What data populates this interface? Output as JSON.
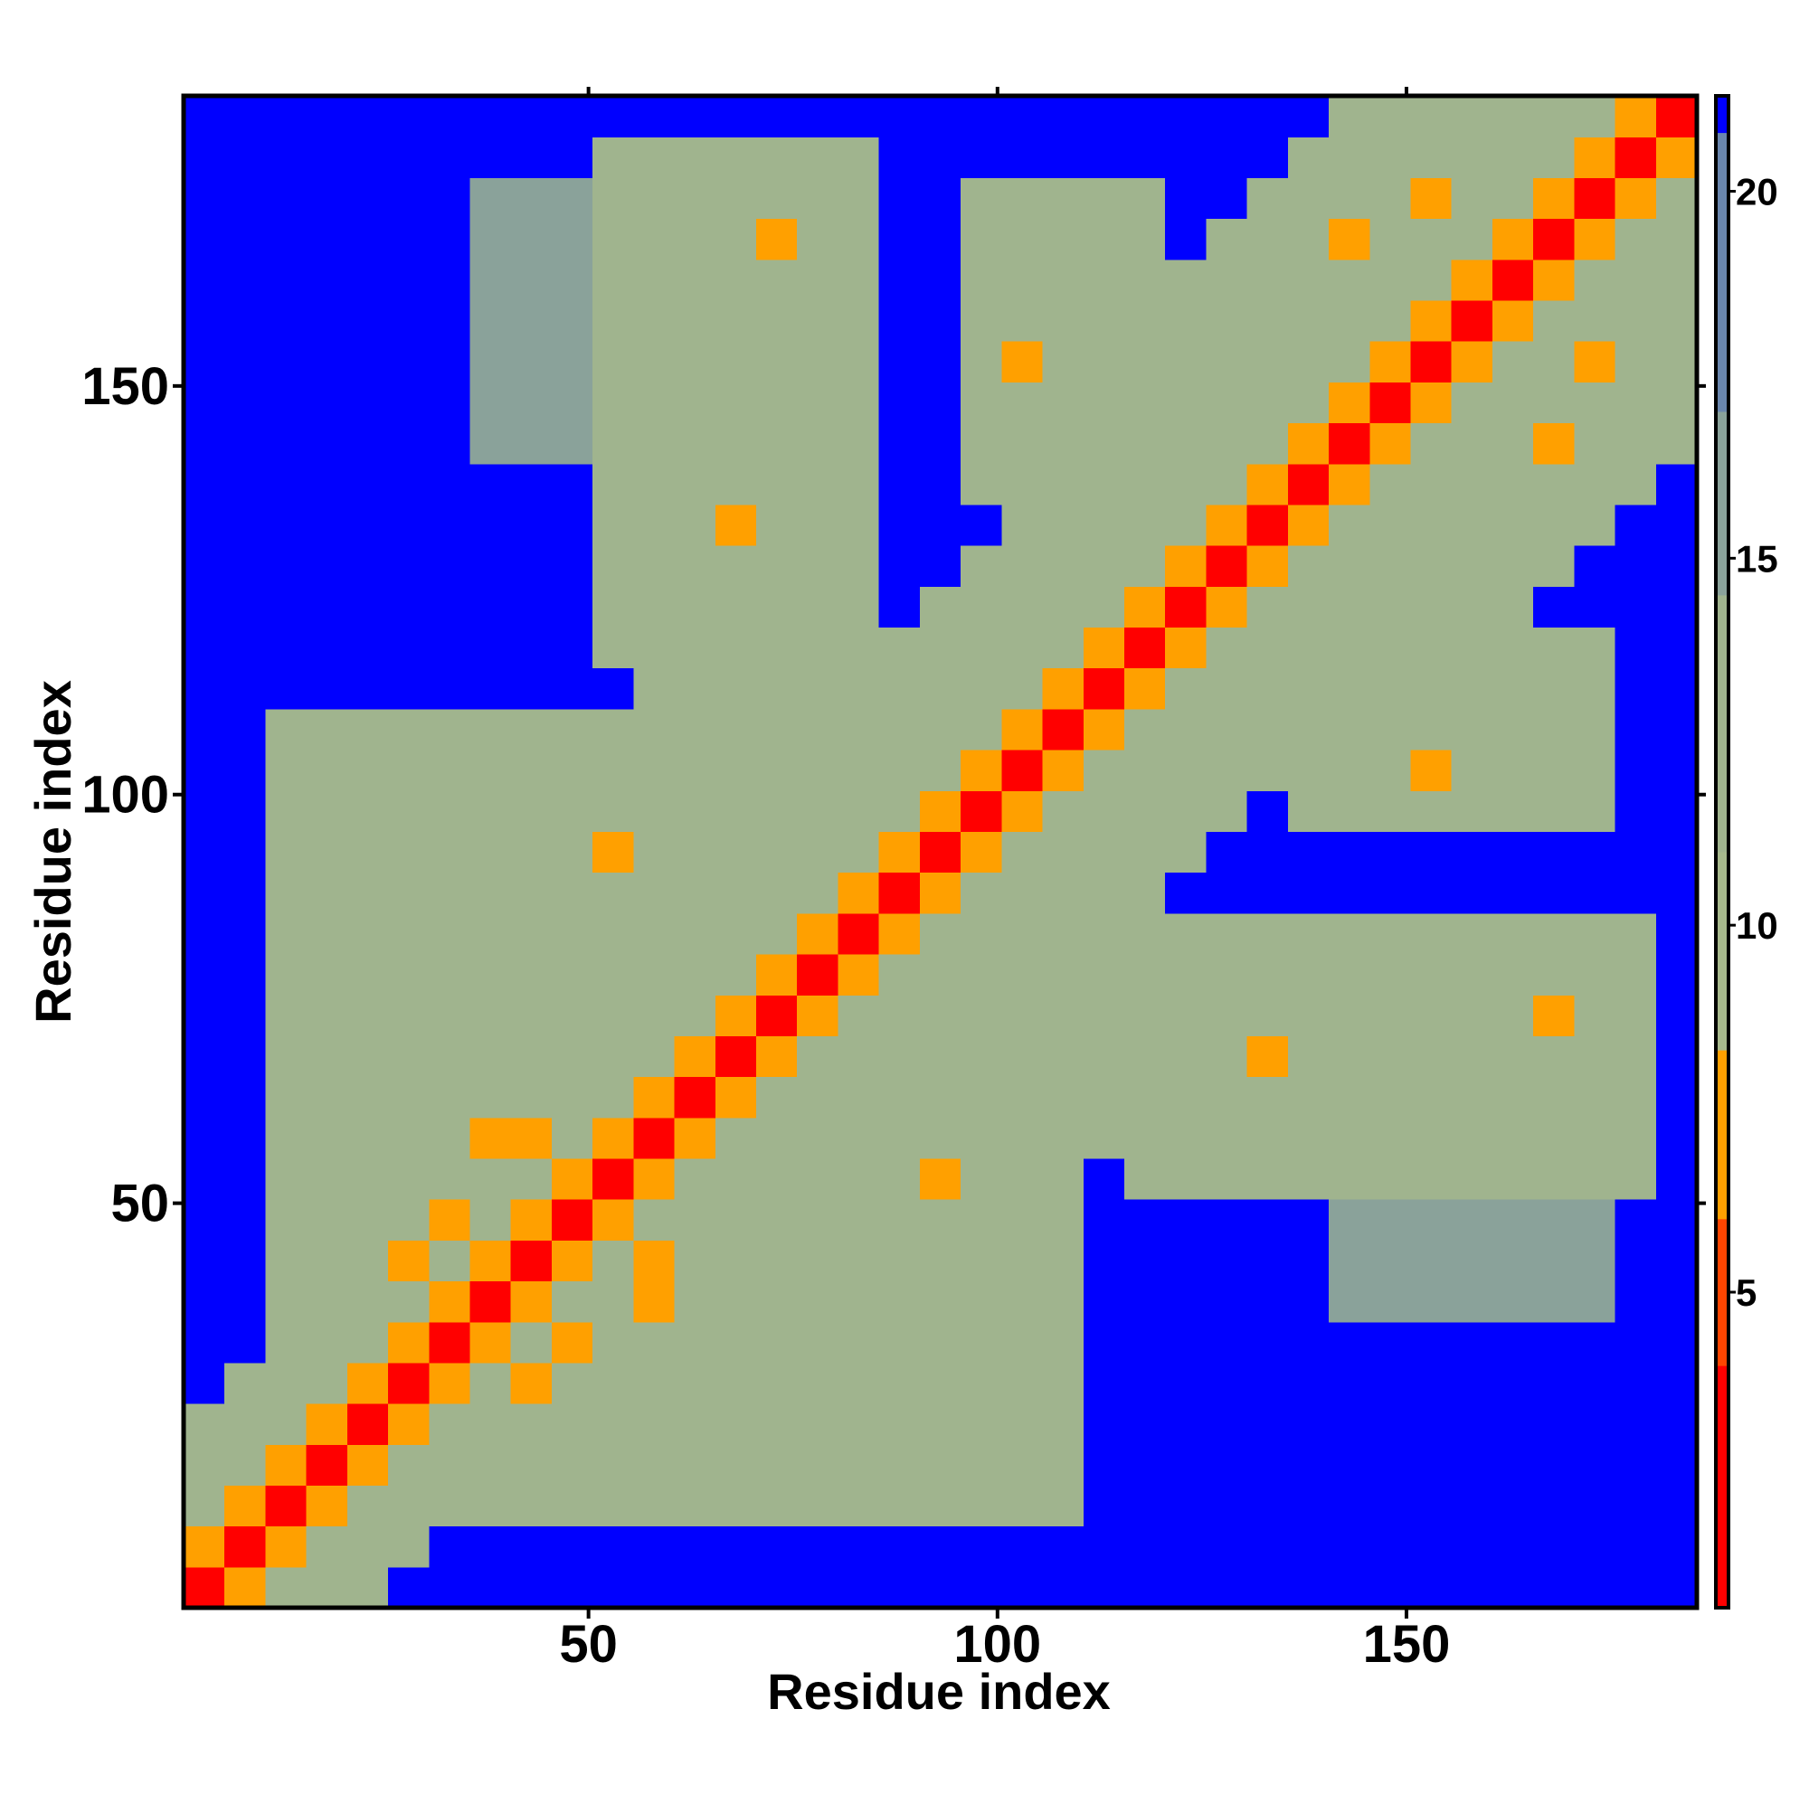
{
  "chart_data": {
    "type": "heatmap",
    "x_label": "Residue index",
    "y_label": "Residue index",
    "xlim": [
      0.5,
      185.5
    ],
    "ylim": [
      0.5,
      185.5
    ],
    "xticks": [
      50,
      100,
      150
    ],
    "yticks": [
      50,
      100,
      150
    ],
    "bins": [
      0.5,
      5.5,
      10.5,
      15.5,
      20.5,
      25.5,
      30.5,
      35.5,
      40.5,
      45.5,
      50.5,
      55.5,
      60.5,
      65.5,
      70.5,
      75.5,
      80.5,
      85.5,
      90.5,
      95.5,
      100.5,
      105.5,
      110.5,
      115.5,
      120.5,
      125.5,
      130.5,
      135.5,
      140.5,
      145.5,
      150.5,
      155.5,
      160.5,
      165.5,
      170.5,
      175.5,
      180.5,
      185.5
    ],
    "color_breaks": [
      0.7,
      4,
      6,
      8.3,
      11,
      14.5,
      17,
      20.8,
      21.3
    ],
    "colors": [
      "#ff0000",
      "#ff4500",
      "#ffa000",
      "#a7b98c",
      "#a0b48e",
      "#8aa29a",
      "#6a86ad",
      "#0000ff"
    ],
    "cbar_ticks": [
      5,
      10,
      15,
      20
    ],
    "z": [
      [
        2,
        7,
        12,
        14,
        14,
        21,
        21,
        21,
        21,
        21,
        21,
        21,
        21,
        21,
        21,
        21,
        21,
        21,
        21,
        21,
        21,
        21,
        21,
        21,
        21,
        21,
        21,
        21,
        21,
        21,
        21,
        21,
        21,
        21,
        21,
        21,
        21
      ],
      [
        7,
        2,
        7,
        12,
        14,
        14,
        21,
        21,
        21,
        21,
        21,
        21,
        21,
        21,
        21,
        21,
        21,
        21,
        21,
        21,
        21,
        21,
        21,
        21,
        21,
        21,
        21,
        21,
        21,
        21,
        21,
        21,
        21,
        21,
        21,
        21,
        21
      ],
      [
        12,
        7,
        2,
        7,
        12,
        14,
        14,
        13,
        13,
        13,
        13,
        13,
        13,
        14,
        14,
        14,
        14,
        14,
        14,
        14,
        14,
        14,
        21,
        21,
        21,
        21,
        21,
        21,
        21,
        21,
        21,
        21,
        21,
        21,
        21,
        21,
        21
      ],
      [
        14,
        12,
        7,
        2,
        7,
        12,
        14,
        14,
        13,
        13,
        13,
        13,
        13,
        14,
        14,
        14,
        14,
        14,
        14,
        14,
        14,
        14,
        21,
        21,
        21,
        21,
        21,
        21,
        21,
        21,
        21,
        21,
        21,
        21,
        21,
        21,
        21
      ],
      [
        14,
        14,
        12,
        7,
        2,
        7,
        12,
        14,
        14,
        13,
        13,
        13,
        13,
        14,
        14,
        14,
        14,
        14,
        14,
        14,
        14,
        14,
        21,
        21,
        21,
        21,
        21,
        21,
        21,
        21,
        21,
        21,
        21,
        21,
        21,
        21,
        21
      ],
      [
        21,
        14,
        14,
        12,
        7,
        2,
        7,
        12,
        7,
        14,
        13,
        13,
        13,
        14,
        14,
        14,
        14,
        14,
        14,
        14,
        14,
        14,
        21,
        21,
        21,
        21,
        21,
        21,
        21,
        21,
        21,
        21,
        21,
        21,
        21,
        21,
        21
      ],
      [
        21,
        21,
        14,
        14,
        12,
        7,
        2,
        7,
        12,
        7,
        14,
        13,
        13,
        14,
        14,
        14,
        14,
        14,
        14,
        14,
        14,
        14,
        21,
        21,
        21,
        21,
        21,
        21,
        21,
        21,
        21,
        21,
        21,
        21,
        21,
        21,
        21
      ],
      [
        21,
        21,
        13,
        14,
        14,
        12,
        7,
        2,
        7,
        12,
        14,
        7,
        13,
        14,
        14,
        14,
        14,
        14,
        14,
        14,
        14,
        14,
        21,
        21,
        21,
        21,
        21,
        21,
        15,
        15,
        15,
        15,
        15,
        15,
        15,
        21,
        21
      ],
      [
        21,
        21,
        13,
        13,
        14,
        7,
        12,
        7,
        2,
        7,
        12,
        7,
        14,
        14,
        14,
        14,
        14,
        14,
        14,
        14,
        14,
        14,
        21,
        21,
        21,
        21,
        21,
        21,
        15,
        15,
        15,
        15,
        15,
        15,
        15,
        21,
        21
      ],
      [
        21,
        21,
        13,
        13,
        13,
        14,
        7,
        12,
        7,
        2,
        7,
        12,
        14,
        14,
        14,
        14,
        14,
        14,
        14,
        14,
        14,
        14,
        21,
        21,
        21,
        21,
        21,
        21,
        15,
        15,
        15,
        15,
        15,
        15,
        15,
        21,
        21
      ],
      [
        21,
        21,
        13,
        13,
        13,
        13,
        14,
        14,
        12,
        7,
        2,
        7,
        12,
        14,
        14,
        14,
        14,
        14,
        7,
        14,
        14,
        14,
        21,
        13,
        13,
        13,
        13,
        13,
        13,
        13,
        13,
        13,
        13,
        13,
        13,
        13,
        21
      ],
      [
        21,
        21,
        13,
        13,
        13,
        13,
        13,
        7,
        7,
        12,
        7,
        2,
        7,
        12,
        14,
        14,
        13,
        13,
        13,
        13,
        13,
        13,
        13,
        13,
        13,
        13,
        13,
        13,
        13,
        13,
        13,
        13,
        13,
        13,
        13,
        13,
        21
      ],
      [
        21,
        21,
        13,
        13,
        13,
        13,
        13,
        13,
        14,
        14,
        12,
        7,
        2,
        7,
        12,
        14,
        14,
        13,
        13,
        13,
        13,
        13,
        13,
        13,
        13,
        13,
        13,
        13,
        13,
        13,
        13,
        13,
        13,
        13,
        13,
        13,
        21
      ],
      [
        21,
        21,
        14,
        14,
        14,
        14,
        14,
        14,
        14,
        14,
        14,
        12,
        7,
        2,
        7,
        12,
        14,
        14,
        13,
        13,
        13,
        13,
        13,
        13,
        13,
        13,
        7,
        13,
        13,
        13,
        13,
        13,
        13,
        13,
        13,
        13,
        21
      ],
      [
        21,
        21,
        14,
        14,
        14,
        14,
        14,
        14,
        14,
        14,
        14,
        14,
        12,
        7,
        2,
        7,
        12,
        14,
        14,
        13,
        13,
        13,
        13,
        13,
        13,
        13,
        13,
        13,
        13,
        13,
        13,
        13,
        13,
        7,
        13,
        13,
        21
      ],
      [
        21,
        21,
        14,
        14,
        14,
        14,
        14,
        14,
        14,
        14,
        14,
        14,
        14,
        12,
        7,
        2,
        7,
        12,
        14,
        14,
        13,
        13,
        13,
        13,
        13,
        13,
        13,
        13,
        13,
        13,
        13,
        13,
        13,
        13,
        13,
        13,
        21
      ],
      [
        21,
        21,
        14,
        14,
        14,
        14,
        14,
        14,
        14,
        14,
        14,
        13,
        14,
        14,
        12,
        7,
        2,
        7,
        12,
        14,
        14,
        13,
        13,
        13,
        13,
        13,
        13,
        13,
        13,
        13,
        13,
        13,
        13,
        13,
        13,
        13,
        21
      ],
      [
        21,
        21,
        14,
        14,
        14,
        14,
        14,
        14,
        14,
        14,
        14,
        13,
        13,
        14,
        14,
        12,
        7,
        2,
        7,
        12,
        14,
        14,
        13,
        13,
        21,
        21,
        21,
        21,
        21,
        21,
        21,
        21,
        21,
        21,
        21,
        21,
        21
      ],
      [
        21,
        21,
        14,
        14,
        14,
        14,
        14,
        14,
        14,
        14,
        7,
        13,
        13,
        13,
        14,
        14,
        12,
        7,
        2,
        7,
        12,
        14,
        14,
        13,
        13,
        21,
        21,
        21,
        21,
        21,
        21,
        21,
        21,
        21,
        21,
        21,
        21
      ],
      [
        21,
        21,
        14,
        14,
        14,
        14,
        14,
        14,
        14,
        14,
        14,
        13,
        13,
        13,
        13,
        14,
        14,
        12,
        7,
        2,
        7,
        12,
        14,
        14,
        13,
        13,
        21,
        13,
        13,
        13,
        13,
        13,
        13,
        13,
        13,
        21,
        21
      ],
      [
        21,
        21,
        14,
        14,
        14,
        14,
        14,
        14,
        14,
        14,
        14,
        13,
        13,
        13,
        13,
        13,
        14,
        14,
        12,
        7,
        2,
        7,
        12,
        14,
        14,
        13,
        13,
        13,
        13,
        13,
        7,
        13,
        13,
        13,
        13,
        21,
        21
      ],
      [
        21,
        21,
        14,
        14,
        14,
        14,
        14,
        14,
        14,
        14,
        14,
        13,
        13,
        13,
        13,
        13,
        13,
        14,
        14,
        12,
        7,
        2,
        7,
        12,
        14,
        14,
        13,
        13,
        13,
        13,
        13,
        13,
        13,
        13,
        13,
        21,
        21
      ],
      [
        21,
        21,
        21,
        21,
        21,
        21,
        21,
        21,
        21,
        21,
        21,
        13,
        13,
        13,
        13,
        13,
        13,
        13,
        14,
        14,
        12,
        7,
        2,
        7,
        12,
        14,
        14,
        13,
        13,
        13,
        13,
        13,
        13,
        13,
        13,
        21,
        21
      ],
      [
        21,
        21,
        21,
        21,
        21,
        21,
        21,
        21,
        21,
        21,
        13,
        13,
        13,
        13,
        13,
        13,
        13,
        13,
        13,
        14,
        14,
        12,
        7,
        2,
        7,
        12,
        14,
        14,
        13,
        13,
        13,
        13,
        13,
        13,
        13,
        21,
        21
      ],
      [
        21,
        21,
        21,
        21,
        21,
        21,
        21,
        21,
        21,
        21,
        13,
        13,
        13,
        13,
        13,
        13,
        13,
        21,
        13,
        13,
        14,
        14,
        12,
        7,
        2,
        7,
        12,
        14,
        14,
        13,
        13,
        13,
        13,
        21,
        21,
        21,
        21
      ],
      [
        21,
        21,
        21,
        21,
        21,
        21,
        21,
        21,
        21,
        21,
        13,
        13,
        13,
        13,
        13,
        13,
        13,
        21,
        21,
        13,
        13,
        14,
        14,
        12,
        7,
        2,
        7,
        12,
        14,
        14,
        13,
        13,
        13,
        13,
        21,
        21,
        21
      ],
      [
        21,
        21,
        21,
        21,
        21,
        21,
        21,
        21,
        21,
        21,
        13,
        13,
        13,
        7,
        13,
        13,
        13,
        21,
        21,
        21,
        13,
        13,
        14,
        14,
        12,
        7,
        2,
        7,
        12,
        14,
        14,
        13,
        13,
        13,
        13,
        21,
        21
      ],
      [
        21,
        21,
        21,
        21,
        21,
        21,
        21,
        21,
        21,
        21,
        13,
        13,
        13,
        13,
        13,
        13,
        13,
        21,
        21,
        13,
        13,
        13,
        13,
        14,
        14,
        12,
        7,
        2,
        7,
        12,
        14,
        14,
        13,
        13,
        13,
        13,
        21
      ],
      [
        21,
        21,
        21,
        21,
        21,
        21,
        21,
        15,
        15,
        15,
        13,
        13,
        13,
        13,
        13,
        13,
        13,
        21,
        21,
        13,
        13,
        13,
        13,
        13,
        14,
        14,
        12,
        7,
        2,
        7,
        12,
        14,
        14,
        7,
        13,
        13,
        13
      ],
      [
        21,
        21,
        21,
        21,
        21,
        21,
        21,
        15,
        15,
        15,
        13,
        13,
        13,
        13,
        13,
        13,
        13,
        21,
        21,
        13,
        13,
        13,
        13,
        13,
        13,
        14,
        14,
        12,
        7,
        2,
        7,
        12,
        14,
        14,
        13,
        13,
        13
      ],
      [
        21,
        21,
        21,
        21,
        21,
        21,
        21,
        15,
        15,
        15,
        13,
        13,
        13,
        13,
        13,
        13,
        13,
        21,
        21,
        13,
        7,
        13,
        13,
        13,
        13,
        13,
        14,
        14,
        12,
        7,
        2,
        7,
        12,
        14,
        7,
        13,
        13
      ],
      [
        21,
        21,
        21,
        21,
        21,
        21,
        21,
        15,
        15,
        15,
        13,
        13,
        13,
        13,
        13,
        13,
        13,
        21,
        21,
        13,
        13,
        13,
        13,
        13,
        13,
        13,
        13,
        14,
        14,
        12,
        7,
        2,
        7,
        12,
        14,
        14,
        13
      ],
      [
        21,
        21,
        21,
        21,
        21,
        21,
        21,
        15,
        15,
        15,
        13,
        13,
        13,
        13,
        13,
        13,
        13,
        21,
        21,
        13,
        13,
        13,
        13,
        13,
        13,
        13,
        13,
        13,
        14,
        14,
        12,
        7,
        2,
        7,
        12,
        14,
        14
      ],
      [
        21,
        21,
        21,
        21,
        21,
        21,
        21,
        15,
        15,
        15,
        13,
        13,
        13,
        13,
        7,
        13,
        13,
        21,
        21,
        13,
        13,
        13,
        13,
        13,
        21,
        13,
        13,
        13,
        7,
        14,
        14,
        12,
        7,
        2,
        7,
        12,
        14
      ],
      [
        21,
        21,
        21,
        21,
        21,
        21,
        21,
        15,
        15,
        15,
        13,
        13,
        13,
        13,
        13,
        13,
        13,
        21,
        21,
        13,
        13,
        13,
        13,
        13,
        21,
        21,
        13,
        13,
        13,
        13,
        7,
        14,
        12,
        7,
        2,
        7,
        12
      ],
      [
        21,
        21,
        21,
        21,
        21,
        21,
        21,
        21,
        21,
        21,
        13,
        13,
        13,
        13,
        13,
        13,
        13,
        21,
        21,
        21,
        21,
        21,
        21,
        21,
        21,
        21,
        21,
        13,
        13,
        13,
        13,
        14,
        14,
        12,
        7,
        2,
        7
      ],
      [
        21,
        21,
        21,
        21,
        21,
        21,
        21,
        21,
        21,
        21,
        21,
        21,
        21,
        21,
        21,
        21,
        21,
        21,
        21,
        21,
        21,
        21,
        21,
        21,
        21,
        21,
        21,
        21,
        13,
        13,
        13,
        13,
        14,
        14,
        12,
        7,
        2
      ]
    ]
  }
}
